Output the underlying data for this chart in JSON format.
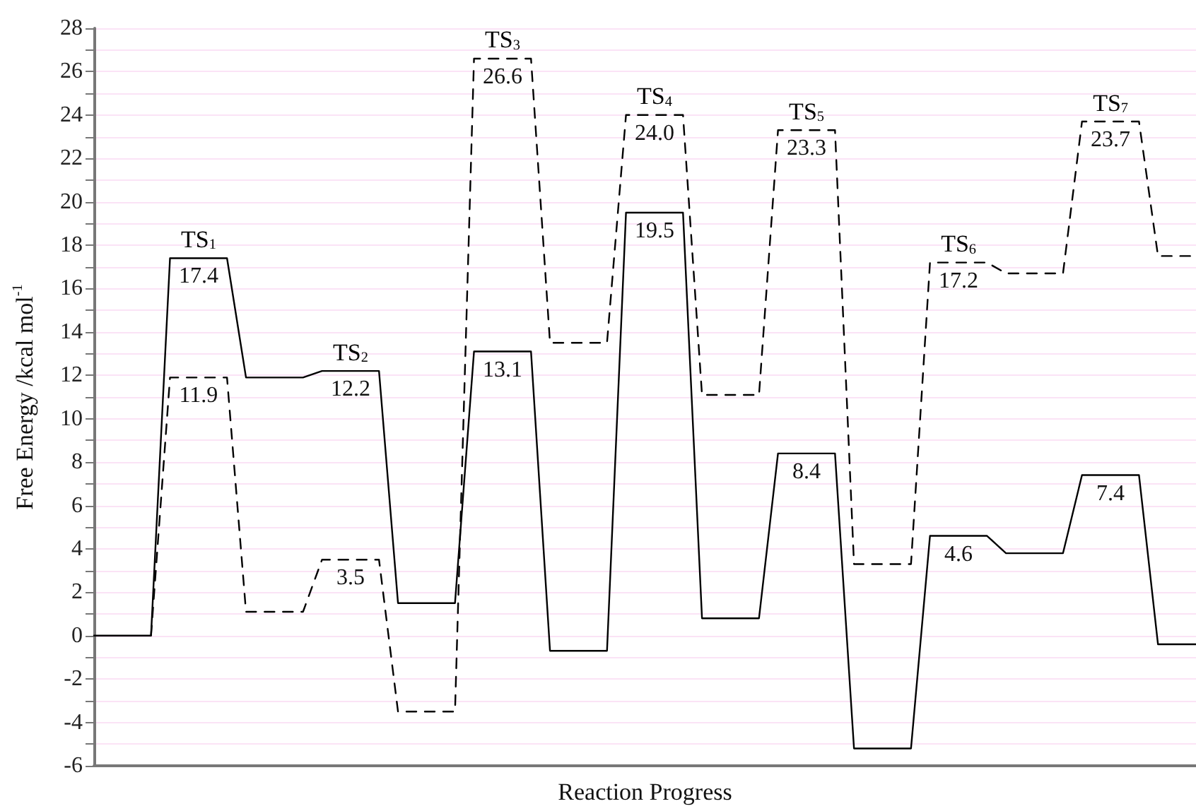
{
  "chart_data": {
    "type": "line",
    "xlabel": "Reaction Progress",
    "ylabel": "Free Energy /kcal mol$^{-1}$",
    "categories": [
      null,
      null,
      null,
      null,
      null,
      null,
      null,
      null,
      null,
      null,
      null,
      null,
      null,
      null,
      null,
      null,
      null,
      null,
      null,
      null,
      null,
      null,
      null,
      null,
      null,
      null,
      null,
      null,
      null,
      null,
      null,
      null,
      null,
      null,
      null,
      null,
      null,
      null,
      null,
      null,
      null,
      null,
      null,
      null,
      null,
      null,
      null,
      null,
      null,
      null,
      null,
      null,
      null,
      null,
      null,
      null,
      null,
      null,
      null
    ],
    "ylim": [
      -6,
      28
    ],
    "yticks": [
      -6,
      {
        "value": -5,
        "label": null
      },
      -4,
      {
        "value": -3,
        "label": null
      },
      -2,
      {
        "value": -1,
        "label": null
      },
      0,
      {
        "value": 1,
        "label": null
      },
      2,
      {
        "value": 3,
        "label": null
      },
      4,
      {
        "value": 5,
        "label": null
      },
      6,
      {
        "value": 7,
        "label": null
      },
      8,
      {
        "value": 9,
        "label": null
      },
      10,
      {
        "value": 11,
        "label": null
      },
      12,
      {
        "value": 13,
        "label": null
      },
      14,
      {
        "value": 15,
        "label": null
      },
      16,
      {
        "value": 17,
        "label": null
      },
      18,
      {
        "value": 19,
        "label": null
      },
      20,
      {
        "value": 21,
        "label": null
      },
      22,
      {
        "value": 23,
        "label": null
      },
      24,
      {
        "value": 25,
        "label": null
      },
      26,
      {
        "value": 27,
        "label": null
      },
      28
    ],
    "tick_labels": "y",
    "grid": "y",
    "marker": "none",
    "series": [
      {
        "color": "#000000",
        "line_style": "solid",
        "values": [
          0,
          0,
          0,
          0,
          17.4,
          17.4,
          17.4,
          17.4,
          11.9,
          11.9,
          11.9,
          11.9,
          12.2,
          12.2,
          12.2,
          12.2,
          1.5,
          1.5,
          1.5,
          1.5,
          13.1,
          13.1,
          13.1,
          13.1,
          -0.7,
          -0.7,
          -0.7,
          -0.7,
          19.5,
          19.5,
          19.5,
          19.5,
          0.8,
          0.8,
          0.8,
          0.8,
          8.4,
          8.4,
          8.4,
          8.4,
          -5.2,
          -5.2,
          -5.2,
          -5.2,
          4.6,
          4.6,
          4.6,
          4.6,
          3.8,
          3.8,
          3.8,
          3.8,
          7.4,
          7.4,
          7.4,
          7.4,
          -0.4,
          -0.4,
          -0.4
        ],
        "value_labels": [
          null,
          null,
          null,
          null,
          "17.4",
          null,
          null,
          null,
          null,
          null,
          null,
          null,
          "12.2",
          null,
          null,
          null,
          null,
          null,
          null,
          null,
          "13.1",
          null,
          null,
          null,
          null,
          null,
          null,
          null,
          "19.5",
          null,
          null,
          null,
          null,
          null,
          null,
          null,
          "8.4",
          null,
          null,
          null,
          null,
          null,
          null,
          null,
          "4.6",
          null,
          null,
          null,
          null,
          null,
          null,
          null,
          "7.4",
          null,
          null,
          null,
          null,
          null,
          null
        ]
      },
      {
        "color": "#000000",
        "line_style": "dashed",
        "values": [
          null,
          null,
          null,
          0,
          11.9,
          11.9,
          11.9,
          11.9,
          1.1,
          1.1,
          1.1,
          1.1,
          3.5,
          3.5,
          3.5,
          3.5,
          -3.5,
          -3.5,
          -3.5,
          -3.5,
          26.6,
          26.6,
          26.6,
          26.6,
          13.5,
          13.5,
          13.5,
          13.5,
          24.0,
          24.0,
          24.0,
          24.0,
          11.1,
          11.1,
          11.1,
          11.1,
          23.3,
          23.3,
          23.3,
          23.3,
          3.3,
          3.3,
          3.3,
          3.3,
          17.2,
          17.2,
          17.2,
          17.2,
          16.7,
          16.7,
          16.7,
          16.7,
          23.7,
          23.7,
          23.7,
          23.7,
          17.5,
          17.5,
          17.5
        ],
        "value_labels": [
          null,
          null,
          null,
          null,
          "11.9",
          null,
          null,
          null,
          null,
          null,
          null,
          null,
          "3.5",
          null,
          null,
          null,
          null,
          null,
          null,
          null,
          "26.6",
          null,
          null,
          null,
          null,
          null,
          null,
          null,
          "24.0",
          null,
          null,
          null,
          null,
          null,
          null,
          null,
          "23.3",
          null,
          null,
          null,
          null,
          null,
          null,
          null,
          "17.2",
          null,
          null,
          null,
          null,
          null,
          null,
          null,
          "23.7",
          null,
          null,
          null,
          null,
          null,
          null
        ]
      }
    ],
    "annotations": [
      {
        "text": "TS$_{1}$",
        "y": 17.4
      },
      {
        "text": "TS$_{2}$",
        "y": 12.2
      },
      {
        "text": "TS$_{3}$",
        "y": 26.6
      },
      {
        "text": "TS$_{4}$",
        "y": 24.0
      },
      {
        "text": "TS$_{5}$",
        "y": 23.3
      },
      {
        "text": "TS$_{6}$",
        "y": 17.2
      },
      {
        "text": "TS$_{7}$",
        "y": 23.7
      }
    ]
  }
}
